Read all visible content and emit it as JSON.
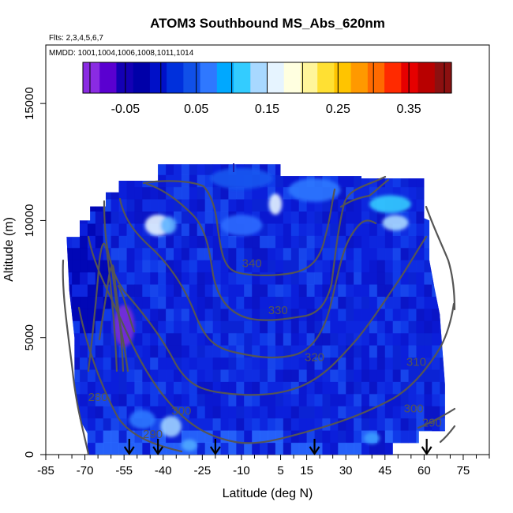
{
  "chart_data": {
    "type": "heatmap",
    "title": "ATOM3 Southbound MS_Abs_620nm",
    "flights_note": "Flts: 2,3,4,5,6,7",
    "dates_note": "MMDD: 1001,1004,1006,1008,1011,1014",
    "xlabel": "Latitude (deg N)",
    "ylabel": "Altitude (m)",
    "xlim": [
      -85,
      85
    ],
    "ylim": [
      0,
      17500
    ],
    "x_ticks": [
      -85,
      -70,
      -55,
      -40,
      -25,
      -10,
      5,
      15,
      30,
      45,
      60,
      75
    ],
    "y_ticks": [
      0,
      5000,
      10000,
      15000
    ],
    "colorbar": {
      "min": -0.11,
      "max": 0.41,
      "tick_values": [
        -0.05,
        0.05,
        0.15,
        0.25,
        0.35
      ],
      "tick_labels": [
        "-0.05",
        "0.05",
        "0.15",
        "0.25",
        "0.35"
      ],
      "colors": [
        "#8a2be2",
        "#5a00d0",
        "#1400b4",
        "#0000a8",
        "#0010c8",
        "#0030dc",
        "#1050e8",
        "#2f78ff",
        "#00a8ff",
        "#33ccff",
        "#a8d8ff",
        "#e6f4ff",
        "#ffffe0",
        "#fff59a",
        "#ffe033",
        "#ffc400",
        "#ff9900",
        "#ff6a00",
        "#ff2a00",
        "#e60000",
        "#b80000",
        "#8c1010"
      ]
    },
    "contour_labels": [
      {
        "value": "340",
        "lat": -6,
        "alt": 8000
      },
      {
        "value": "330",
        "lat": 4,
        "alt": 6000
      },
      {
        "value": "320",
        "lat": 18,
        "alt": 4000
      },
      {
        "value": "310",
        "lat": 57,
        "alt": 3800
      },
      {
        "value": "300",
        "lat": 56,
        "alt": 1800
      },
      {
        "value": "300",
        "lat": -33,
        "alt": 1700
      },
      {
        "value": "290",
        "lat": 63,
        "alt": 1200
      },
      {
        "value": "290",
        "lat": -44,
        "alt": 700
      },
      {
        "value": "280",
        "lat": -65,
        "alt": 2300
      }
    ],
    "profile_arrow_lats": [
      -53,
      -42,
      -20,
      18,
      61
    ],
    "notable_features": [
      {
        "lat": -52,
        "alt": 6000,
        "value": -0.08
      },
      {
        "lat": -40,
        "alt": 9800,
        "value": 0.12
      },
      {
        "lat": 3,
        "alt": 10700,
        "value": 0.12
      },
      {
        "lat": 47,
        "alt": 10700,
        "value": 0.08
      },
      {
        "lat": -37,
        "alt": 1200,
        "value": 0.1
      }
    ]
  }
}
